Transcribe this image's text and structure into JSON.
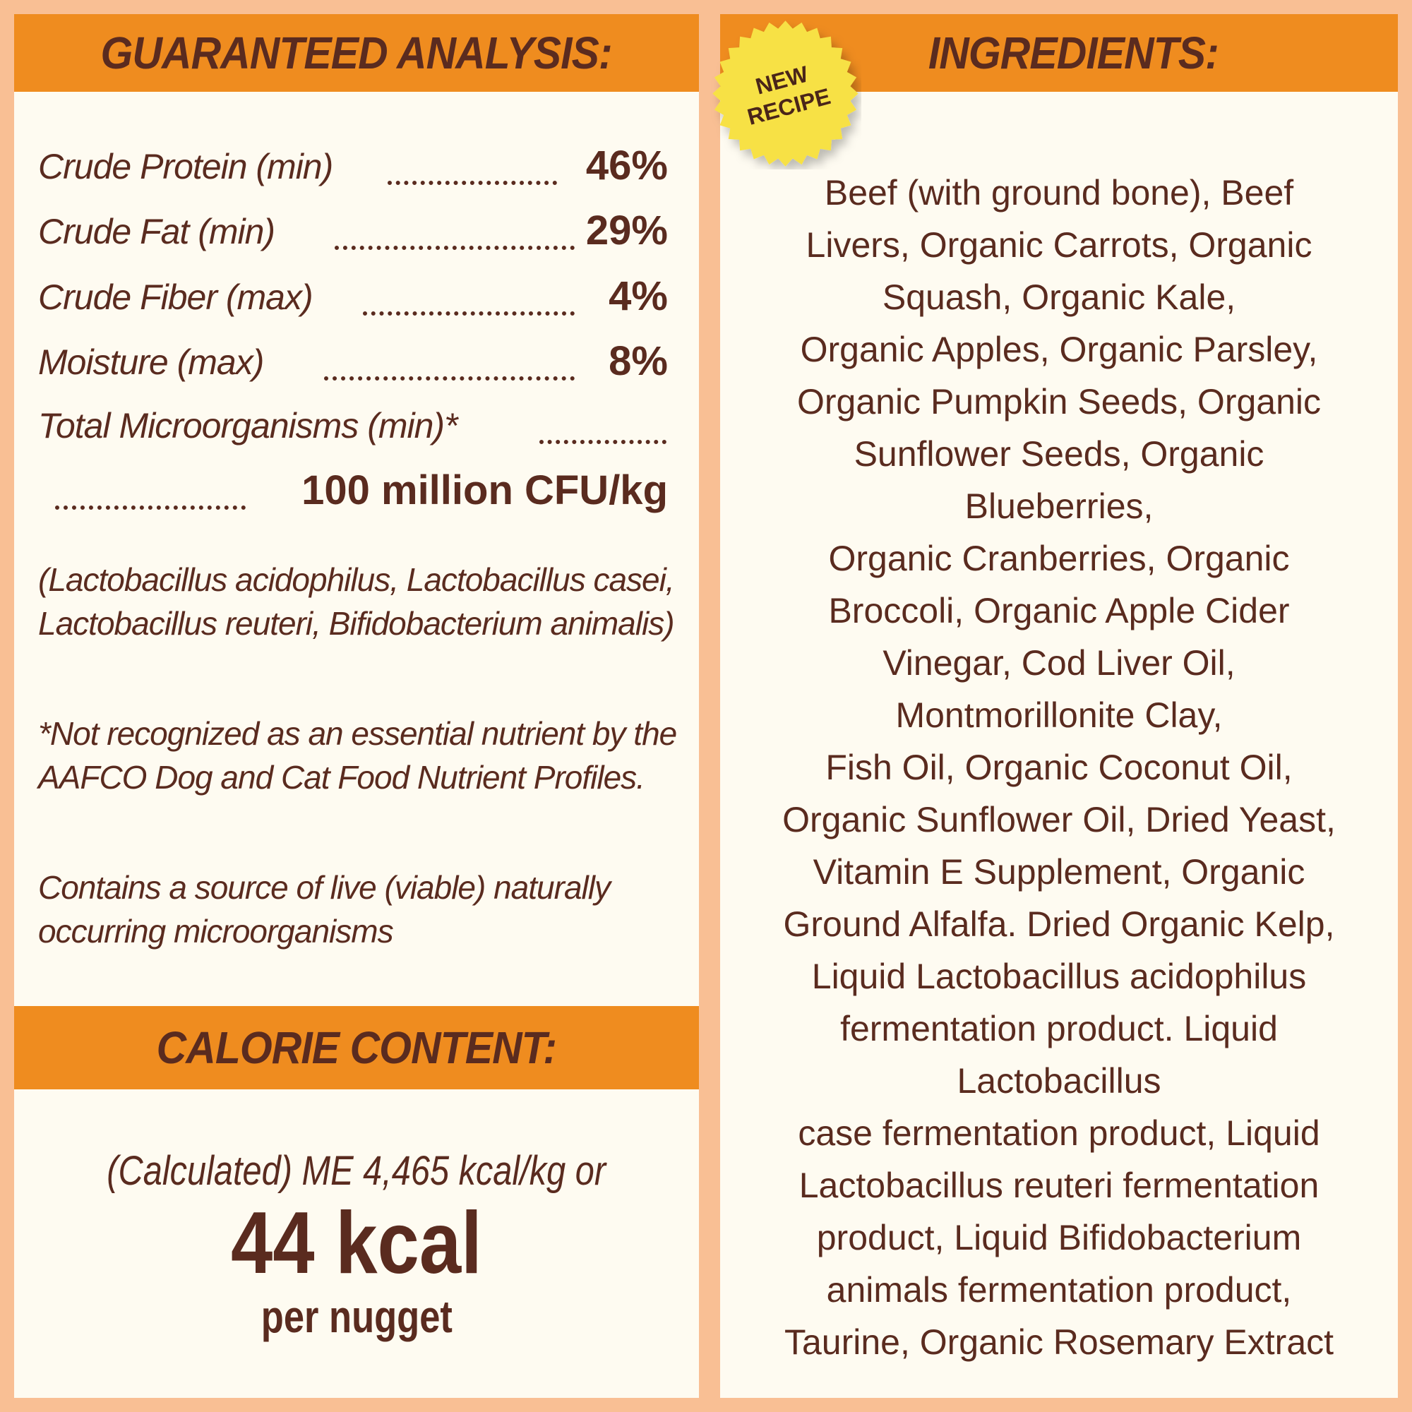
{
  "colors": {
    "background": "#f9bf94",
    "header": "#ef8c1f",
    "panel": "#fefbf1",
    "text": "#5a2b1f",
    "badge": "#f7e145"
  },
  "analysis": {
    "title": "GUARANTEED ANALYSIS:",
    "rows": [
      {
        "label": "Crude Protein (min)",
        "value": "46%"
      },
      {
        "label": "Crude Fat (min)",
        "value": "29%"
      },
      {
        "label": "Crude Fiber (max)",
        "value": "4%"
      },
      {
        "label": "Moisture (max)",
        "value": "8%"
      },
      {
        "label": "Total Microorganisms (min)*",
        "value": ""
      },
      {
        "label": "",
        "value": "100 million CFU/kg"
      }
    ],
    "strains": "(Lactobacillus acidophilus, Lactobacillus casei, Lactobacillus reuteri, Bifidobacterium animalis)",
    "footnote": "*Not recognized as an essential nutrient by the AAFCO Dog and Cat Food Nutrient Profiles.",
    "note": "Contains a source of live (viable) naturally occurring microorganisms"
  },
  "calorie": {
    "title": "CALORIE CONTENT:",
    "line1": "(Calculated) ME 4,465 kcal/kg or",
    "big": "44 kcal",
    "unit": "per nugget"
  },
  "ingredients": {
    "title": "INGREDIENTS:",
    "badge": {
      "line1": "NEW",
      "line2": "RECIPE"
    },
    "lines": [
      "Beef (with ground bone), Beef",
      "Livers, Organic Carrots, Organic",
      "Squash, Organic Kale,",
      "Organic Apples, Organic Parsley,",
      "Organic Pumpkin Seeds, Organic",
      "Sunflower Seeds, Organic",
      "Blueberries,",
      "Organic Cranberries, Organic",
      "Broccoli, Organic Apple Cider",
      "Vinegar, Cod Liver Oil,",
      "Montmorillonite Clay,",
      "Fish Oil, Organic Coconut Oil,",
      "Organic Sunflower Oil, Dried Yeast,",
      "Vitamin E Supplement, Organic",
      "Ground Alfalfa. Dried Organic Kelp,",
      "Liquid Lactobacillus acidophilus",
      "fermentation product. Liquid",
      "Lactobacillus",
      "case fermentation product, Liquid",
      "Lactobacillus reuteri fermentation",
      "product, Liquid Bifidobacterium",
      "animals fermentation product,",
      "Taurine, Organic Rosemary Extract"
    ]
  }
}
